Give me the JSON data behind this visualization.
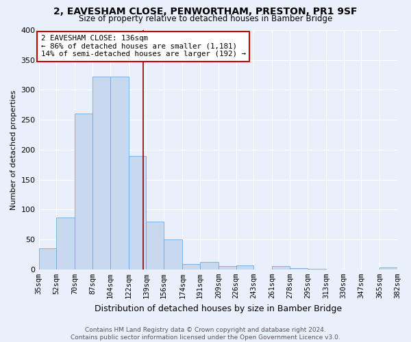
{
  "title1": "2, EAVESHAM CLOSE, PENWORTHAM, PRESTON, PR1 9SF",
  "title2": "Size of property relative to detached houses in Bamber Bridge",
  "xlabel": "Distribution of detached houses by size in Bamber Bridge",
  "ylabel": "Number of detached properties",
  "footer1": "Contains HM Land Registry data © Crown copyright and database right 2024.",
  "footer2": "Contains public sector information licensed under the Open Government Licence v3.0.",
  "annotation_title": "2 EAVESHAM CLOSE: 136sqm",
  "annotation_line1": "← 86% of detached houses are smaller (1,181)",
  "annotation_line2": "14% of semi-detached houses are larger (192) →",
  "property_size": 136,
  "bar_edges": [
    35,
    52,
    70,
    87,
    104,
    122,
    139,
    156,
    174,
    191,
    209,
    226,
    243,
    261,
    278,
    295,
    313,
    330,
    347,
    365,
    382
  ],
  "bar_heights": [
    35,
    87,
    260,
    322,
    322,
    190,
    80,
    50,
    9,
    12,
    5,
    7,
    0,
    6,
    2,
    1,
    0,
    0,
    0,
    3
  ],
  "bar_color": "#c8d9ef",
  "bar_edge_color": "#6fa8dc",
  "vline_color": "#8b0000",
  "vline_x": 136,
  "annotation_box_color": "#ffffff",
  "annotation_box_edge": "#cc0000",
  "bg_color": "#eaf0fb",
  "grid_color": "#ffffff",
  "tick_labels": [
    "35sqm",
    "52sqm",
    "70sqm",
    "87sqm",
    "104sqm",
    "122sqm",
    "139sqm",
    "156sqm",
    "174sqm",
    "191sqm",
    "209sqm",
    "226sqm",
    "243sqm",
    "261sqm",
    "278sqm",
    "295sqm",
    "313sqm",
    "330sqm",
    "347sqm",
    "365sqm",
    "382sqm"
  ],
  "ylim": [
    0,
    400
  ],
  "yticks": [
    0,
    50,
    100,
    150,
    200,
    250,
    300,
    350,
    400
  ]
}
